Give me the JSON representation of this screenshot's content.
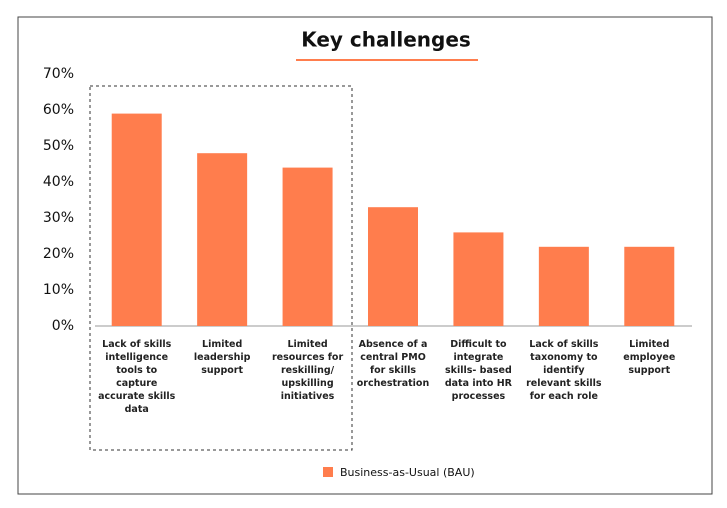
{
  "chart_data": {
    "type": "bar",
    "title": "Key challenges",
    "categories": [
      "Lack of skills intelligence tools to capture accurate skills data",
      "Limited leadership support",
      "Limited resources for reskilling/ upskilling initiatives",
      "Absence of a central PMO for skills orchestration",
      "Difficult to integrate skills- based data into HR processes",
      "Lack of skills taxonomy to identify relevant skills for each role",
      "Limited employee support"
    ],
    "series": [
      {
        "name": "Business-as-Usual (BAU)",
        "color": "#ff7d4d",
        "values": [
          59,
          48,
          44,
          33,
          26,
          22,
          22
        ]
      }
    ],
    "ylim": [
      0,
      70
    ],
    "yticks": [
      {
        "value": 0,
        "label": "0%"
      },
      {
        "value": 10,
        "label": "10%"
      },
      {
        "value": 20,
        "label": "20%"
      },
      {
        "value": 30,
        "label": "30%"
      },
      {
        "value": 40,
        "label": "40%"
      },
      {
        "value": 50,
        "label": "50%"
      },
      {
        "value": 60,
        "label": "60%"
      },
      {
        "value": 70,
        "label": "70%"
      }
    ],
    "grid": false,
    "legend": "bottom"
  }
}
